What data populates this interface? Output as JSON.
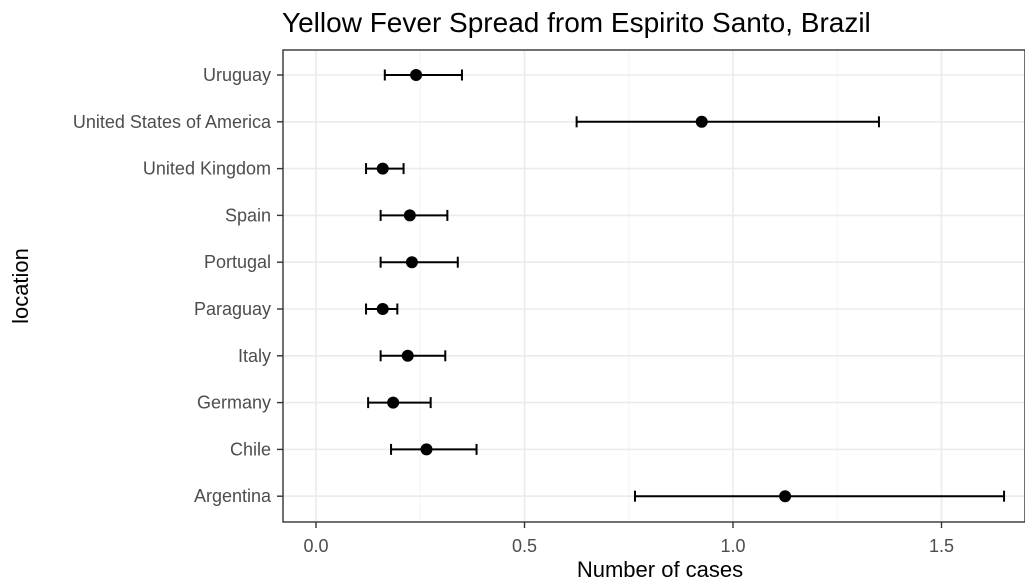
{
  "chart_data": {
    "type": "scatter",
    "title": "Yellow Fever Spread from Espirito Santo, Brazil",
    "xlabel": "Number of cases",
    "ylabel": "location",
    "xlim": [
      -0.08,
      1.65
    ],
    "xticks": [
      0.0,
      0.5,
      1.0,
      1.5
    ],
    "xtick_labels": [
      "0.0",
      "0.5",
      "1.0",
      "1.5"
    ],
    "grid": true,
    "categories": [
      "Uruguay",
      "United States of America",
      "United Kingdom",
      "Spain",
      "Portugal",
      "Paraguay",
      "Italy",
      "Germany",
      "Chile",
      "Argentina"
    ],
    "points": [
      {
        "location": "Uruguay",
        "value": 0.24,
        "lower": 0.165,
        "upper": 0.35
      },
      {
        "location": "United States of America",
        "value": 0.925,
        "lower": 0.625,
        "upper": 1.35
      },
      {
        "location": "United Kingdom",
        "value": 0.16,
        "lower": 0.12,
        "upper": 0.21
      },
      {
        "location": "Spain",
        "value": 0.225,
        "lower": 0.155,
        "upper": 0.315
      },
      {
        "location": "Portugal",
        "value": 0.23,
        "lower": 0.155,
        "upper": 0.34
      },
      {
        "location": "Paraguay",
        "value": 0.16,
        "lower": 0.12,
        "upper": 0.195
      },
      {
        "location": "Italy",
        "value": 0.22,
        "lower": 0.155,
        "upper": 0.31
      },
      {
        "location": "Germany",
        "value": 0.185,
        "lower": 0.125,
        "upper": 0.275
      },
      {
        "location": "Chile",
        "value": 0.265,
        "lower": 0.18,
        "upper": 0.385
      },
      {
        "location": "Argentina",
        "value": 1.125,
        "lower": 0.765,
        "upper": 1.65
      }
    ]
  }
}
